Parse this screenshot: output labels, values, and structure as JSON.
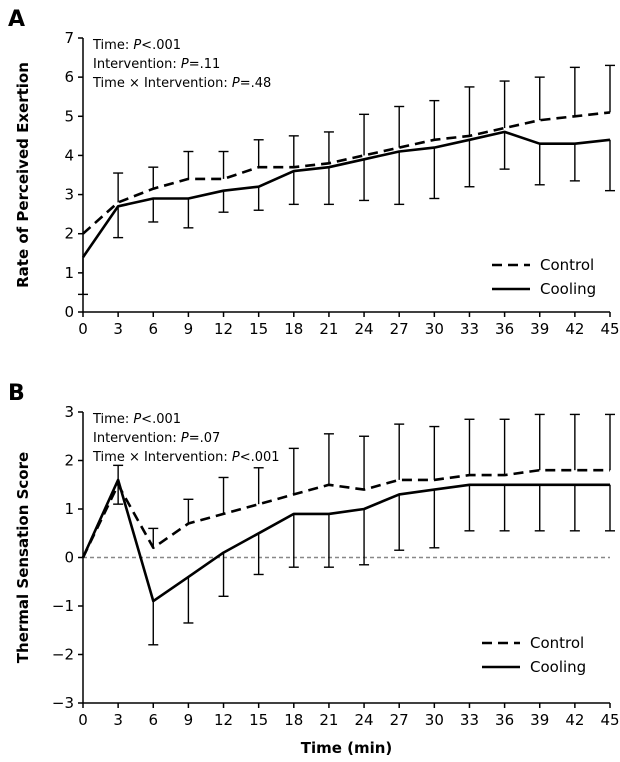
{
  "chart_data": [
    {
      "type": "line",
      "panel_label": "A",
      "ylabel": "Rate of Perceived Exertion",
      "xlabel": "",
      "ylim": [
        0,
        7
      ],
      "yticks": [
        0,
        1,
        2,
        3,
        4,
        5,
        6,
        7
      ],
      "x": [
        0,
        3,
        6,
        9,
        12,
        15,
        18,
        21,
        24,
        27,
        30,
        33,
        36,
        39,
        42,
        45
      ],
      "stats": [
        {
          "prefix": "Time: ",
          "p": "P",
          "suffix": "<.001"
        },
        {
          "prefix": "Intervention: ",
          "p": "P",
          "suffix": "=.11"
        },
        {
          "prefix": "Time × Intervention: ",
          "p": "P",
          "suffix": "=.48"
        }
      ],
      "legend_position": "bottom-right",
      "series": [
        {
          "name": "Control",
          "style": "dashed",
          "values": [
            2.0,
            2.8,
            3.15,
            3.4,
            3.4,
            3.7,
            3.7,
            3.8,
            4.0,
            4.2,
            4.4,
            4.5,
            4.7,
            4.9,
            5.0,
            5.1
          ],
          "err_lower": [
            0,
            0,
            0,
            0,
            0,
            0,
            0,
            0,
            0,
            0,
            0,
            0,
            0,
            0,
            0,
            0
          ],
          "err_upper": [
            0,
            0.75,
            0.55,
            0.7,
            0.7,
            0.7,
            0.8,
            0.8,
            1.05,
            1.05,
            1.0,
            1.25,
            1.2,
            1.1,
            1.25,
            1.2
          ]
        },
        {
          "name": "Cooling",
          "style": "solid",
          "values": [
            1.4,
            2.7,
            2.9,
            2.9,
            3.1,
            3.2,
            3.6,
            3.7,
            3.9,
            4.1,
            4.2,
            4.4,
            4.6,
            4.3,
            4.3,
            4.4
          ],
          "err_lower": [
            0.95,
            0.8,
            0.6,
            0.75,
            0.55,
            0.6,
            0.85,
            0.95,
            1.05,
            1.35,
            1.3,
            1.2,
            0.95,
            1.05,
            0.95,
            1.3
          ],
          "err_upper": [
            0,
            0,
            0,
            0,
            0,
            0,
            0,
            0,
            0,
            0,
            0,
            0,
            0,
            0,
            0,
            0
          ]
        }
      ]
    },
    {
      "type": "line",
      "panel_label": "B",
      "ylabel": "Thermal Sensation Score",
      "xlabel": "Time (min)",
      "ylim": [
        -3,
        3
      ],
      "yticks": [
        -3,
        -2,
        -1,
        0,
        1,
        2,
        3
      ],
      "x": [
        0,
        3,
        6,
        9,
        12,
        15,
        18,
        21,
        24,
        27,
        30,
        33,
        36,
        39,
        42,
        45
      ],
      "reference_line": 0,
      "stats": [
        {
          "prefix": "Time: ",
          "p": "P",
          "suffix": "<.001"
        },
        {
          "prefix": "Intervention: ",
          "p": "P",
          "suffix": "=.07"
        },
        {
          "prefix": "Time × Intervention: ",
          "p": "P",
          "suffix": "<.001"
        }
      ],
      "legend_position": "bottom-right",
      "series": [
        {
          "name": "Control",
          "style": "dashed",
          "values": [
            0,
            1.5,
            0.2,
            0.7,
            0.9,
            1.1,
            1.3,
            1.5,
            1.4,
            1.6,
            1.6,
            1.7,
            1.7,
            1.8,
            1.8,
            1.8
          ],
          "err_lower": [
            0,
            0,
            0,
            0,
            0,
            0,
            0,
            0,
            0,
            0,
            0,
            0,
            0,
            0,
            0,
            0
          ],
          "err_upper": [
            0,
            0.4,
            0.4,
            0.5,
            0.75,
            0.75,
            0.95,
            1.05,
            1.1,
            1.15,
            1.1,
            1.15,
            1.15,
            1.15,
            1.15,
            1.15
          ]
        },
        {
          "name": "Cooling",
          "style": "solid",
          "values": [
            0,
            1.6,
            -0.9,
            -0.4,
            0.1,
            0.5,
            0.9,
            0.9,
            1.0,
            1.3,
            1.4,
            1.5,
            1.5,
            1.5,
            1.5,
            1.5
          ],
          "err_lower": [
            0,
            0.5,
            0.9,
            0.95,
            0.9,
            0.85,
            1.1,
            1.1,
            1.15,
            1.15,
            1.2,
            0.95,
            0.95,
            0.95,
            0.95,
            0.95
          ],
          "err_upper": [
            0,
            0,
            0,
            0,
            0,
            0,
            0,
            0,
            0,
            0,
            0,
            0,
            0,
            0,
            0,
            0
          ]
        }
      ]
    }
  ]
}
